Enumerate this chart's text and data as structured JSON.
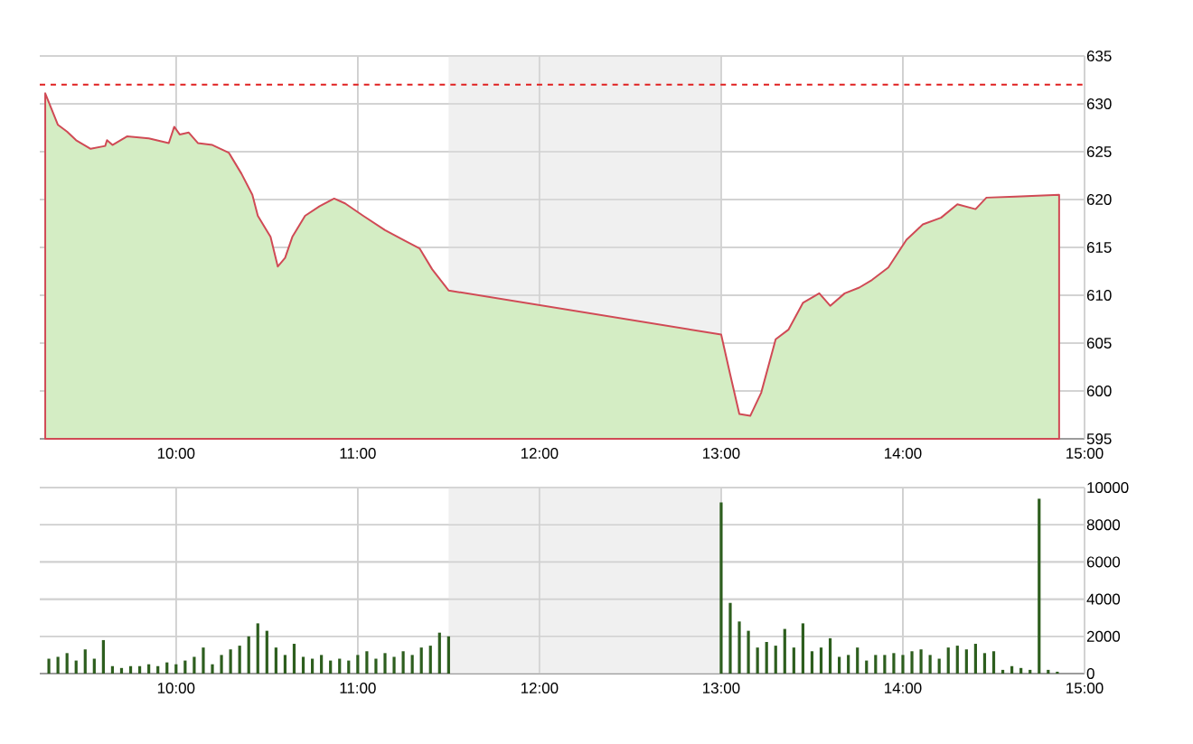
{
  "chart_data": [
    {
      "type": "area",
      "xlim": [
        9.25,
        15
      ],
      "ylim": [
        595,
        635
      ],
      "xticks": [
        {
          "value": 10,
          "label": "10:00"
        },
        {
          "value": 11,
          "label": "11:00"
        },
        {
          "value": 12,
          "label": "12:00"
        },
        {
          "value": 13,
          "label": "13:00"
        },
        {
          "value": 14,
          "label": "14:00"
        },
        {
          "value": 15,
          "label": "15:00"
        }
      ],
      "yticks": [
        595,
        600,
        605,
        610,
        615,
        620,
        625,
        630,
        635
      ],
      "grid": true,
      "x": [
        9.28,
        9.35,
        9.4,
        9.45,
        9.53,
        9.61,
        9.62,
        9.65,
        9.73,
        9.85,
        9.96,
        9.99,
        10.02,
        10.07,
        10.12,
        10.2,
        10.29,
        10.36,
        10.42,
        10.45,
        10.52,
        10.56,
        10.6,
        10.64,
        10.71,
        10.79,
        10.87,
        10.93,
        11.03,
        11.15,
        11.25,
        11.34,
        11.41,
        11.5,
        13.0,
        13.05,
        13.1,
        13.16,
        13.22,
        13.3,
        13.37,
        13.45,
        13.54,
        13.6,
        13.68,
        13.76,
        13.83,
        13.92,
        14.02,
        14.11,
        14.21,
        14.3,
        14.4,
        14.46,
        14.62,
        14.86
      ],
      "series": [
        {
          "color": "#d04a55",
          "values": [
            631.1,
            627.8,
            627.1,
            626.2,
            625.3,
            625.6,
            626.2,
            625.7,
            626.6,
            626.4,
            625.9,
            627.6,
            626.8,
            627.0,
            625.9,
            625.7,
            624.9,
            622.7,
            620.5,
            618.3,
            616.1,
            613.0,
            613.9,
            616.1,
            618.3,
            619.3,
            620.1,
            619.6,
            618.3,
            616.8,
            615.8,
            614.9,
            612.7,
            610.5,
            605.9,
            601.7,
            597.6,
            597.4,
            599.8,
            605.4,
            606.4,
            609.2,
            610.2,
            608.9,
            610.2,
            610.8,
            611.6,
            612.9,
            615.8,
            617.4,
            618.1,
            619.5,
            619.0,
            620.2,
            620.3,
            620.5
          ]
        }
      ],
      "ref_lines": [
        {
          "axis": "y",
          "value": 632,
          "color": "#e02020",
          "line_style": "dashed"
        }
      ],
      "bands": [
        {
          "axis": "x",
          "from": 11.5,
          "to": 13,
          "color": "#f0f0f0"
        }
      ]
    },
    {
      "type": "bar",
      "xlim": [
        9.25,
        15
      ],
      "ylim": [
        0,
        10000
      ],
      "xticks": [
        {
          "value": 10,
          "label": "10:00"
        },
        {
          "value": 11,
          "label": "11:00"
        },
        {
          "value": 12,
          "label": "12:00"
        },
        {
          "value": 13,
          "label": "13:00"
        },
        {
          "value": 14,
          "label": "14:00"
        },
        {
          "value": 15,
          "label": "15:00"
        }
      ],
      "yticks": [
        0,
        2000,
        4000,
        6000,
        8000,
        10000
      ],
      "grid": true,
      "x": [
        9.3,
        9.35,
        9.4,
        9.45,
        9.5,
        9.55,
        9.6,
        9.65,
        9.7,
        9.75,
        9.8,
        9.85,
        9.9,
        9.95,
        10.0,
        10.05,
        10.1,
        10.15,
        10.2,
        10.25,
        10.3,
        10.35,
        10.4,
        10.45,
        10.5,
        10.55,
        10.6,
        10.65,
        10.7,
        10.75,
        10.8,
        10.85,
        10.9,
        10.95,
        11.0,
        11.05,
        11.1,
        11.15,
        11.2,
        11.25,
        11.3,
        11.35,
        11.4,
        11.45,
        11.5,
        13.0,
        13.05,
        13.1,
        13.15,
        13.2,
        13.25,
        13.3,
        13.35,
        13.4,
        13.45,
        13.5,
        13.55,
        13.6,
        13.65,
        13.7,
        13.75,
        13.8,
        13.85,
        13.9,
        13.95,
        14.0,
        14.05,
        14.1,
        14.15,
        14.2,
        14.25,
        14.3,
        14.35,
        14.4,
        14.45,
        14.5,
        14.55,
        14.6,
        14.65,
        14.7,
        14.75,
        14.8,
        14.85
      ],
      "series": [
        {
          "color": "#2d5e1e",
          "values": [
            800,
            900,
            1100,
            700,
            1300,
            800,
            1800,
            400,
            300,
            400,
            400,
            500,
            400,
            600,
            500,
            700,
            900,
            1400,
            500,
            1000,
            1300,
            1500,
            2000,
            2700,
            2300,
            1400,
            1000,
            1600,
            900,
            800,
            1000,
            700,
            800,
            700,
            1000,
            1200,
            800,
            1100,
            900,
            1200,
            1000,
            1400,
            1500,
            2200,
            2000,
            9200,
            3800,
            2800,
            2300,
            1400,
            1700,
            1500,
            2400,
            1400,
            2700,
            1200,
            1400,
            1900,
            900,
            1000,
            1400,
            700,
            1000,
            1000,
            1100,
            1000,
            1200,
            1300,
            1000,
            800,
            1400,
            1500,
            1300,
            1600,
            1100,
            1200,
            200,
            400,
            300,
            200,
            9400,
            200,
            100
          ]
        }
      ],
      "bands": [
        {
          "axis": "x",
          "from": 11.5,
          "to": 13,
          "color": "#f0f0f0"
        }
      ]
    }
  ]
}
